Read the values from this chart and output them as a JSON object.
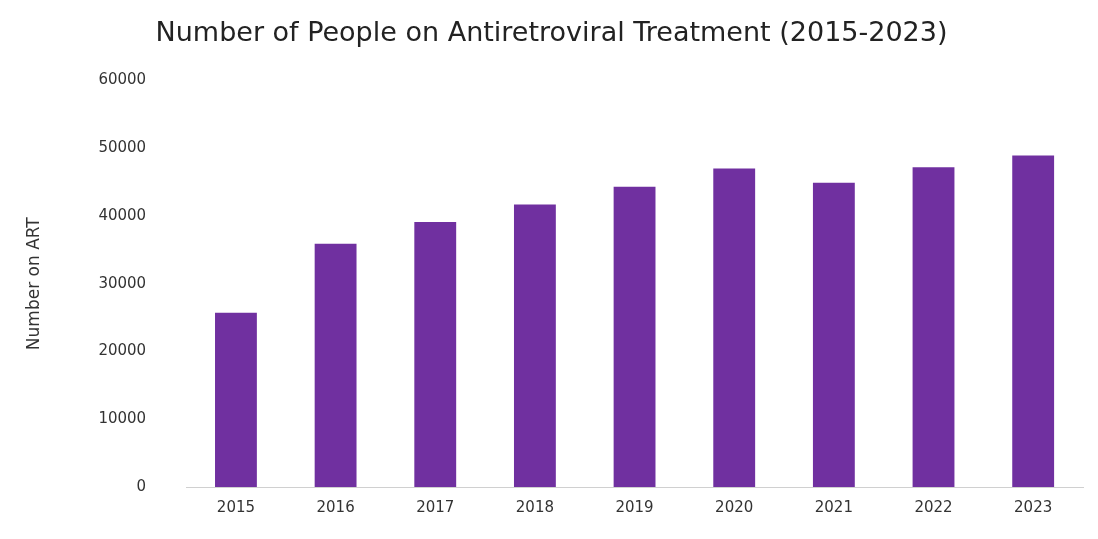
{
  "chart_data": {
    "type": "bar",
    "title": "Number of People on Antiretroviral Treatment (2015-2023)",
    "ylabel": "Number on ART",
    "categories": [
      "2015",
      "2016",
      "2017",
      "2018",
      "2019",
      "2020",
      "2021",
      "2022",
      "2023"
    ],
    "values": [
      25700,
      35900,
      39100,
      41700,
      44300,
      47000,
      44900,
      47200,
      48900
    ],
    "color": "#7030a0",
    "ylim": [
      0,
      60000
    ],
    "yticks": [
      0,
      10000,
      20000,
      30000,
      40000,
      50000,
      60000
    ],
    "grid": false,
    "legend": false
  }
}
